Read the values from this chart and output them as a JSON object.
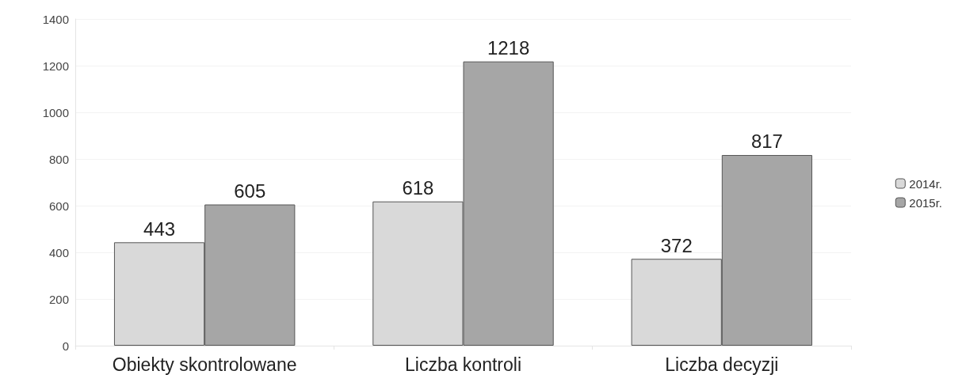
{
  "chart_data": {
    "type": "bar",
    "categories": [
      "Obiekty skontrolowane",
      "Liczba kontroli",
      "Liczba decyzji"
    ],
    "series": [
      {
        "name": "2014r.",
        "color": "#d9d9d9",
        "values": [
          443,
          618,
          372
        ]
      },
      {
        "name": "2015r.",
        "color": "#a6a6a6",
        "values": [
          605,
          1218,
          817
        ]
      }
    ],
    "ylim": [
      0,
      1400
    ],
    "yticks": [
      0,
      200,
      400,
      600,
      800,
      1000,
      1200,
      1400
    ],
    "grid": "y",
    "legend": "right",
    "data_labels": true
  }
}
